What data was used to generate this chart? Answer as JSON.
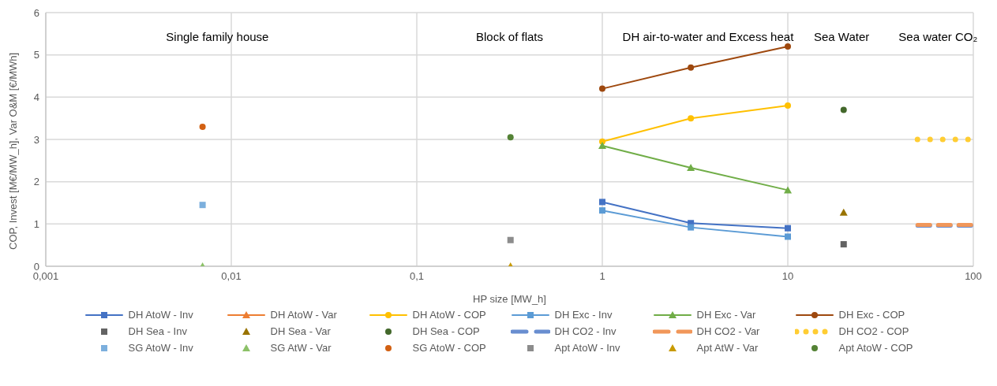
{
  "chart_data": {
    "type": "line",
    "xlabel": "HP size [MW_h]",
    "ylabel": "COP, Invest [M€/MW_h], Var O&M [€/MWh]",
    "log": "x",
    "xlim": [
      0.001,
      100
    ],
    "xticks": [
      {
        "value": 0.001,
        "label": "0,001"
      },
      {
        "value": 0.01,
        "label": "0,01"
      },
      {
        "value": 0.1,
        "label": "0,1"
      },
      1,
      10,
      100
    ],
    "ylim": [
      0,
      6
    ],
    "yticks": [
      0,
      1,
      2,
      3,
      4,
      5,
      6
    ],
    "grid": true,
    "legend": "bottom",
    "annotations": [
      "Single family house",
      "Block of flats",
      "DH air-to-water and Excess heat",
      "Sea Water",
      "Sea water CO₂"
    ],
    "series": [
      {
        "name": "DH AtoW - Inv",
        "color": "#4472c4",
        "marker": "square",
        "line_style": "solid",
        "x": [
          1,
          3,
          10
        ],
        "values": [
          1.52,
          1.02,
          0.9
        ]
      },
      {
        "name": "DH AtoW - Var",
        "color": "#ed7d31",
        "marker": "triangle",
        "line_style": "solid"
      },
      {
        "name": "DH AtoW - COP",
        "color": "#ffc000",
        "marker": "circle",
        "line_style": "solid",
        "x": [
          1,
          3,
          10
        ],
        "values": [
          2.95,
          3.5,
          3.8
        ]
      },
      {
        "name": "DH Exc - Inv",
        "color": "#5b9bd5",
        "marker": "square",
        "line_style": "solid",
        "x": [
          1,
          3,
          10
        ],
        "values": [
          1.32,
          0.92,
          0.7
        ]
      },
      {
        "name": "DH Exc - Var",
        "color": "#70ad47",
        "marker": "triangle",
        "line_style": "solid",
        "x": [
          1,
          3,
          10
        ],
        "values": [
          2.85,
          2.33,
          1.8
        ]
      },
      {
        "name": "DH Exc - COP",
        "color": "#9e480e",
        "marker": "circle",
        "line_style": "solid",
        "x": [
          1,
          3,
          10
        ],
        "values": [
          4.2,
          4.7,
          5.2
        ]
      },
      {
        "name": "DH Sea - Inv",
        "type": "scatter",
        "color": "#636363",
        "marker": "square",
        "x": [
          20
        ],
        "values": [
          0.52
        ]
      },
      {
        "name": "DH Sea - Var",
        "type": "scatter",
        "color": "#997300",
        "marker": "triangle",
        "x": [
          20
        ],
        "values": [
          1.27
        ]
      },
      {
        "name": "DH Sea - COP",
        "type": "scatter",
        "color": "#43682b",
        "marker": "circle",
        "x": [
          20
        ],
        "values": [
          3.7
        ]
      },
      {
        "name": "DH CO2 - Inv",
        "color": "#698ed0",
        "marker": "none",
        "line_style": "dashed",
        "x": [
          50,
          100
        ],
        "values": [
          0.96,
          0.96
        ]
      },
      {
        "name": "DH CO2 - Var",
        "color": "#f1975a",
        "marker": "none",
        "line_style": "dashed",
        "x": [
          50,
          100
        ],
        "values": [
          0.98,
          0.98
        ]
      },
      {
        "name": "DH CO2 - COP",
        "color": "#ffcd33",
        "marker": "none",
        "line_style": "dotted",
        "x": [
          50,
          100
        ],
        "values": [
          3.0,
          3.0
        ]
      },
      {
        "name": "SG AtoW - Inv",
        "type": "scatter",
        "color": "#7cafdd",
        "marker": "square",
        "x": [
          0.007
        ],
        "values": [
          1.45
        ]
      },
      {
        "name": "SG AtW - Var",
        "type": "scatter",
        "color": "#8cc168",
        "marker": "triangle",
        "x": [
          0.007
        ],
        "values": [
          0
        ]
      },
      {
        "name": "SG AtoW - COP",
        "type": "scatter",
        "color": "#d26012",
        "marker": "circle",
        "x": [
          0.007
        ],
        "values": [
          3.3
        ]
      },
      {
        "name": "Apt AtoW - Inv",
        "type": "scatter",
        "color": "#8c8c8c",
        "marker": "square",
        "x": [
          0.32
        ],
        "values": [
          0.62
        ]
      },
      {
        "name": "Apt AtW - Var",
        "type": "scatter",
        "color": "#c89a00",
        "marker": "triangle",
        "x": [
          0.32
        ],
        "values": [
          0
        ]
      },
      {
        "name": "Apt AtoW - COP",
        "type": "scatter",
        "color": "#548235",
        "marker": "circle",
        "x": [
          0.32
        ],
        "values": [
          3.05
        ]
      }
    ]
  }
}
